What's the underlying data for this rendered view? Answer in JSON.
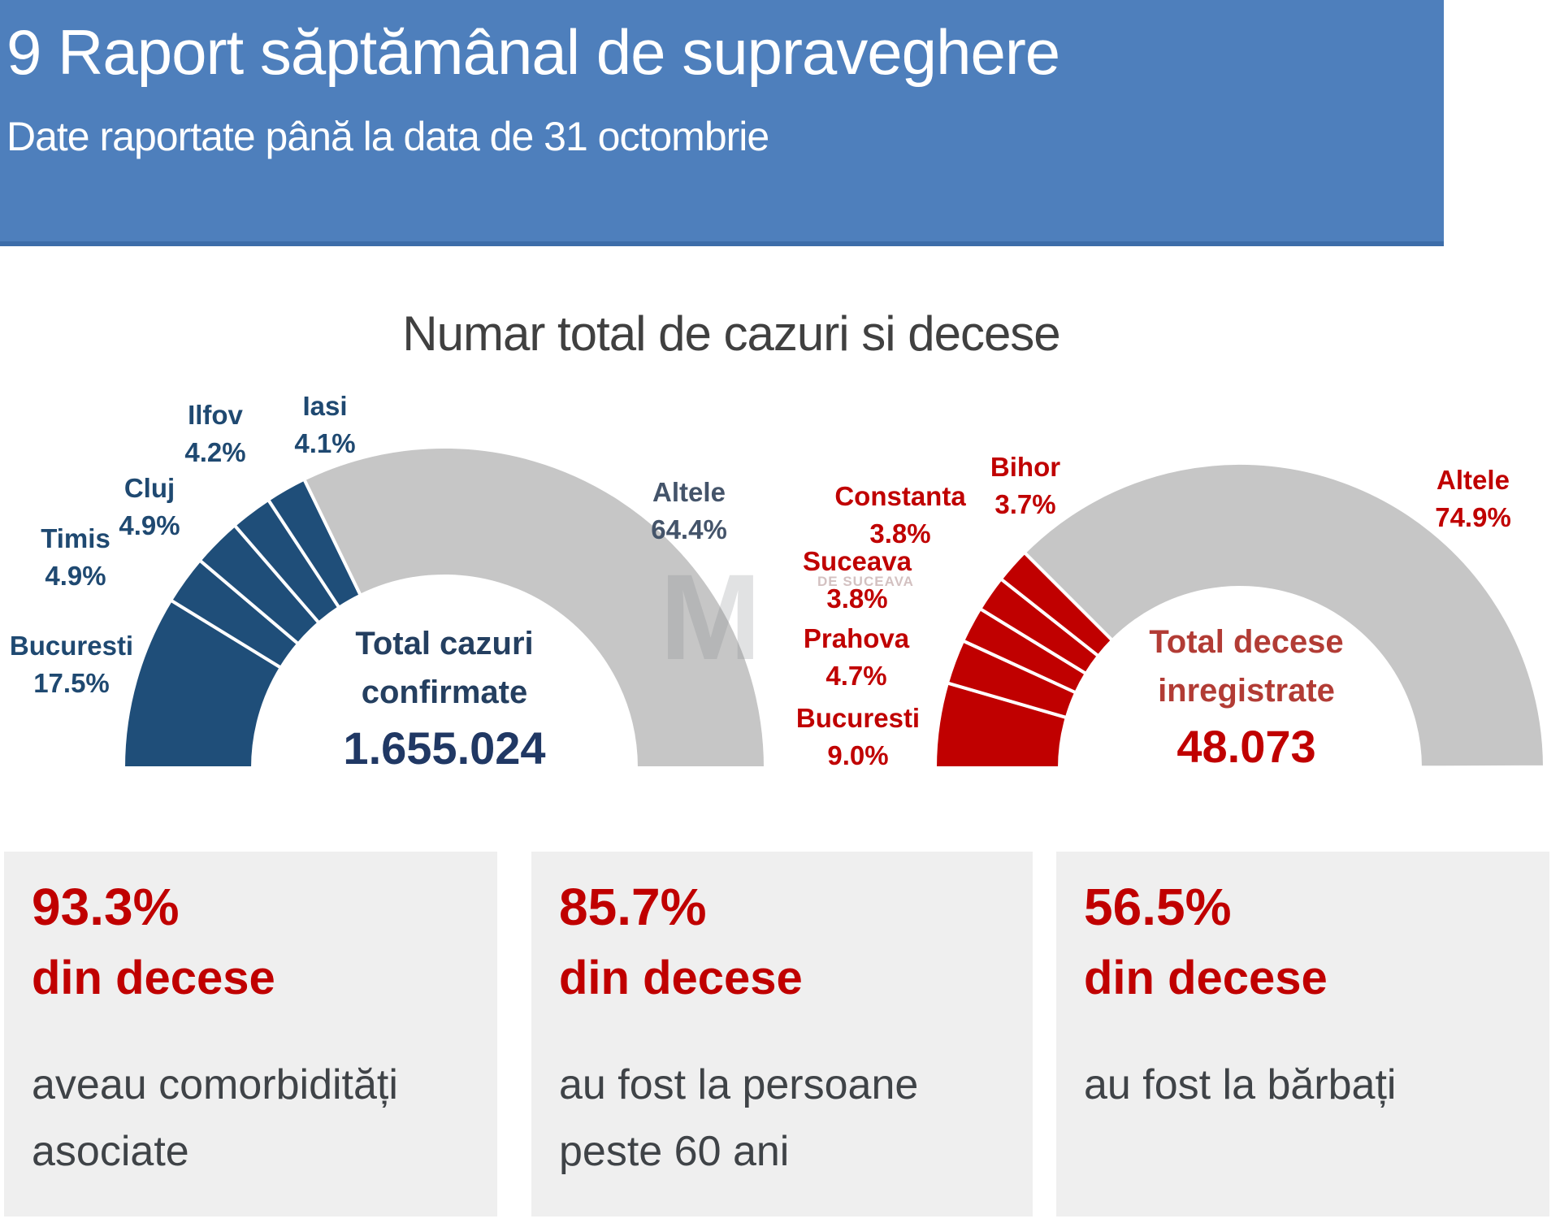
{
  "header": {
    "title": "9 Raport săptămânal de supraveghere",
    "subtitle": "Date raportate până la data de 31 octombrie",
    "bg_color": "#4e7fbc"
  },
  "section_title": "Numar total de cazuri si decese",
  "watermark": {
    "letter": "M",
    "text": "DE SUCEAVA"
  },
  "chart_data": [
    {
      "type": "pie",
      "variant": "semi-donut",
      "name": "cazuri",
      "center_label_lines": [
        "Total cazuri",
        "confirmate"
      ],
      "center_value": "1.655.024",
      "categories": [
        "Bucuresti",
        "Timis",
        "Cluj",
        "Ilfov",
        "Iasi",
        "Altele"
      ],
      "values": [
        17.5,
        4.9,
        4.9,
        4.2,
        4.1,
        64.4
      ],
      "unit": "%",
      "highlight_color": "#1f4e79",
      "other_color": "#c6c6c6",
      "label_color": "#1f4971",
      "altele_label_color": "#44546a"
    },
    {
      "type": "pie",
      "variant": "semi-donut",
      "name": "decese",
      "center_label_lines": [
        "Total decese",
        "inregistrate"
      ],
      "center_value": "48.073",
      "categories": [
        "Bucuresti",
        "Prahova",
        "Suceava",
        "Constanta",
        "Bihor",
        "Altele"
      ],
      "values": [
        9.0,
        4.7,
        3.8,
        3.8,
        3.7,
        74.9
      ],
      "unit": "%",
      "highlight_color": "#c00000",
      "other_color": "#c6c6c6",
      "label_color": "#c00000",
      "altele_label_color": "#c00000"
    }
  ],
  "stats": [
    {
      "percent": "93.3%",
      "sub": "din decese",
      "desc_lines": [
        "aveau comorbidități",
        "asociate"
      ]
    },
    {
      "percent": "85.7%",
      "sub": "din decese",
      "desc_lines": [
        "au fost la persoane",
        "peste 60 ani"
      ]
    },
    {
      "percent": "56.5%",
      "sub": "din decese",
      "desc_lines": [
        "au fost la bărbați"
      ]
    }
  ]
}
